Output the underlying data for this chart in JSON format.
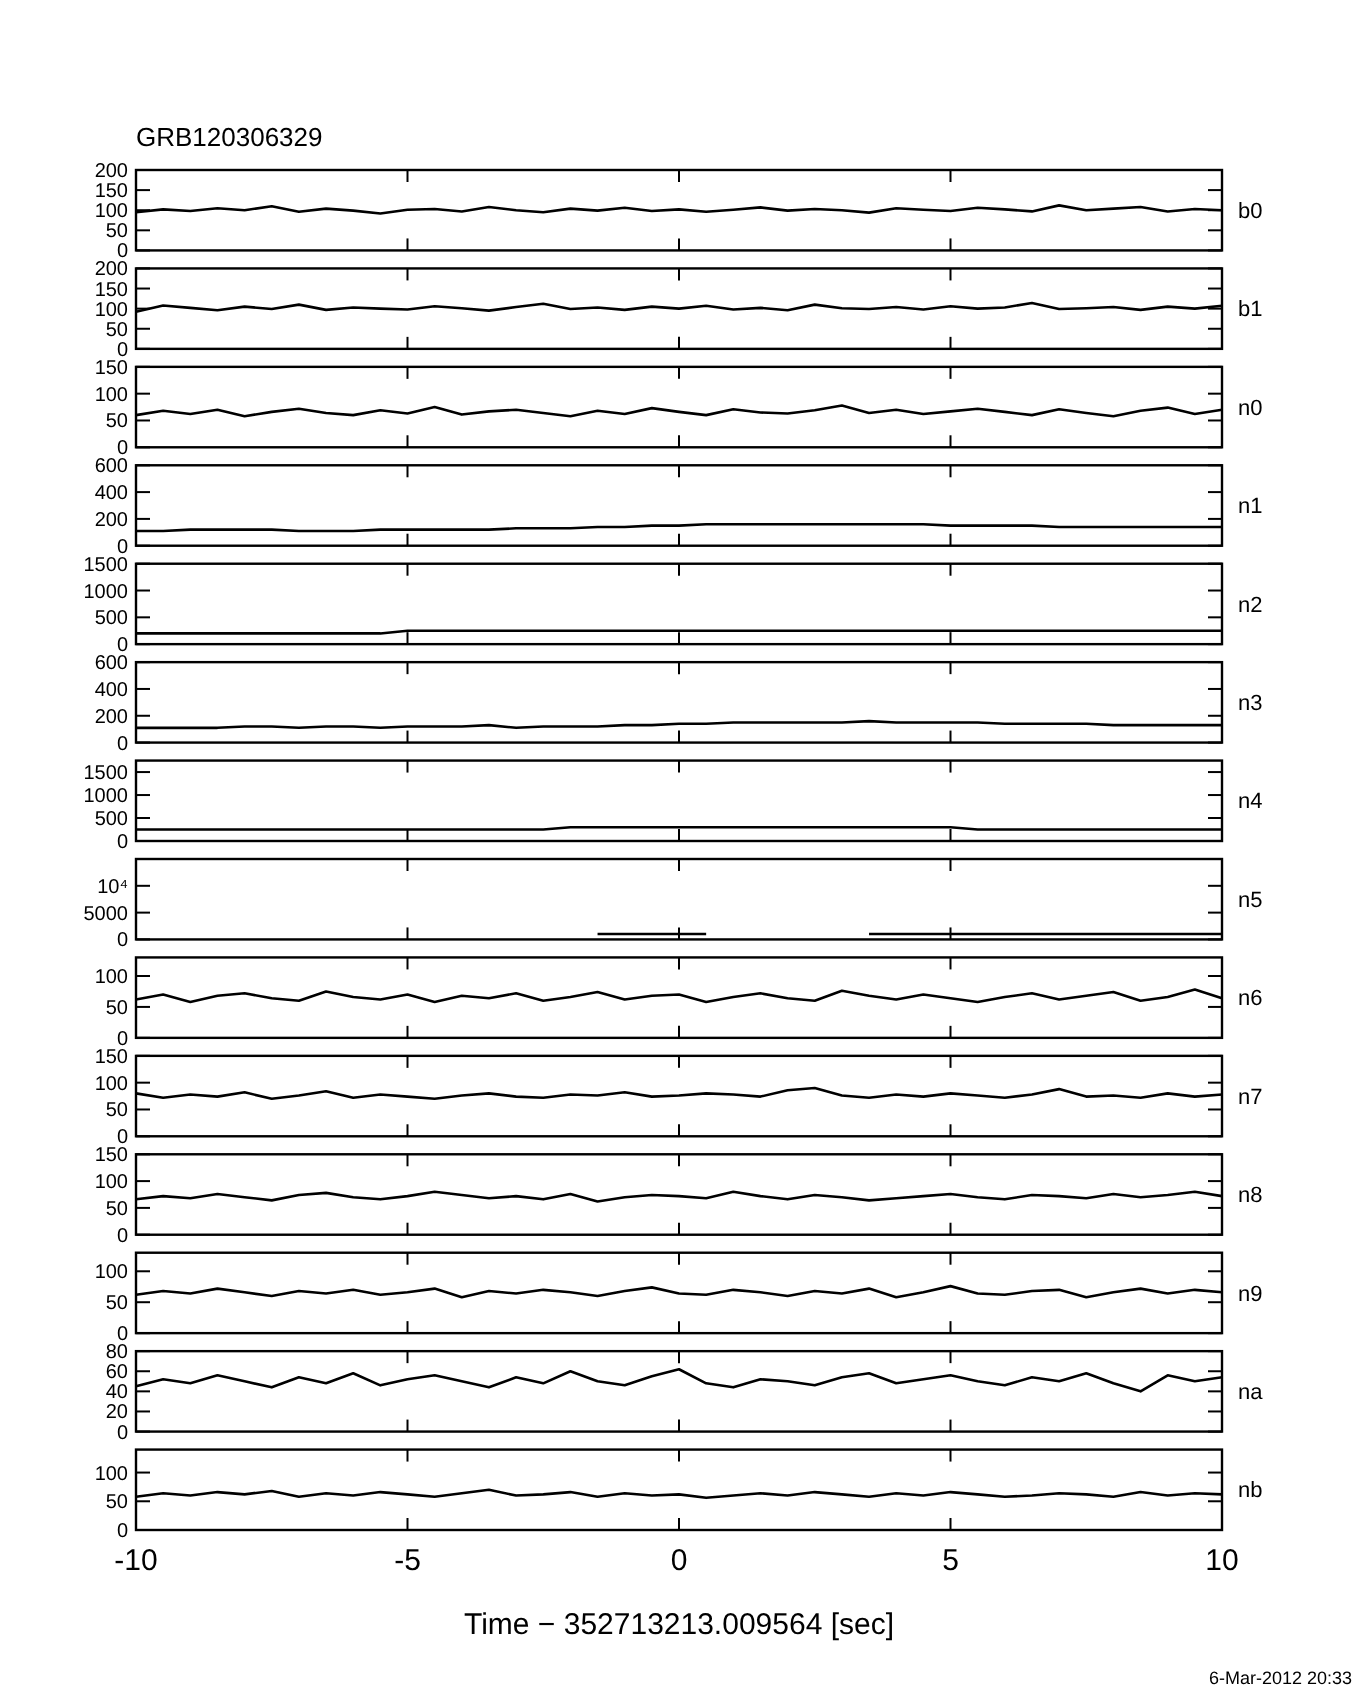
{
  "chart_data": [
    {
      "type": "line",
      "title": "GRB120306329",
      "tick_labels": "y",
      "xlim": [
        -10,
        10
      ],
      "xticks": [
        -10,
        -5,
        0,
        5,
        10
      ],
      "ylim": [
        0,
        200
      ],
      "yticks": [
        0,
        50,
        100,
        150,
        200
      ],
      "x": [
        -10,
        -9.5,
        -9,
        -8.5,
        -8,
        -7.5,
        -7,
        -6.5,
        -6,
        -5.5,
        -5,
        -4.5,
        -4,
        -3.5,
        -3,
        -2.5,
        -2,
        -1.5,
        -1,
        -0.5,
        0,
        0.5,
        1,
        1.5,
        2,
        2.5,
        3,
        3.5,
        4,
        4.5,
        5,
        5.5,
        6,
        6.5,
        7,
        7.5,
        8,
        8.5,
        9,
        9.5,
        10
      ],
      "series": [
        {
          "name": "b0",
          "color": "#000000",
          "values": [
            95,
            102,
            98,
            105,
            100,
            110,
            96,
            104,
            99,
            92,
            101,
            103,
            97,
            108,
            100,
            95,
            104,
            99,
            106,
            98,
            102,
            96,
            101,
            107,
            99,
            103,
            100,
            94,
            105,
            101,
            98,
            106,
            102,
            97,
            112,
            100,
            104,
            108,
            97,
            103,
            100
          ]
        }
      ]
    },
    {
      "type": "line",
      "tick_labels": "y",
      "xlim": [
        -10,
        10
      ],
      "xticks": [
        -10,
        -5,
        0,
        5,
        10
      ],
      "ylim": [
        0,
        200
      ],
      "yticks": [
        0,
        50,
        100,
        150,
        200
      ],
      "x": [
        -10,
        -9.5,
        -9,
        -8.5,
        -8,
        -7.5,
        -7,
        -6.5,
        -6,
        -5.5,
        -5,
        -4.5,
        -4,
        -3.5,
        -3,
        -2.5,
        -2,
        -1.5,
        -1,
        -0.5,
        0,
        0.5,
        1,
        1.5,
        2,
        2.5,
        3,
        3.5,
        4,
        4.5,
        5,
        5.5,
        6,
        6.5,
        7,
        7.5,
        8,
        8.5,
        9,
        9.5,
        10
      ],
      "series": [
        {
          "name": "b1",
          "color": "#000000",
          "values": [
            92,
            108,
            102,
            96,
            105,
            99,
            110,
            97,
            103,
            100,
            98,
            106,
            101,
            95,
            104,
            112,
            99,
            103,
            97,
            105,
            100,
            107,
            98,
            102,
            96,
            110,
            101,
            99,
            104,
            98,
            106,
            100,
            103,
            114,
            99,
            101,
            104,
            97,
            105,
            100,
            107
          ]
        }
      ]
    },
    {
      "type": "line",
      "tick_labels": "y",
      "xlim": [
        -10,
        10
      ],
      "xticks": [
        -10,
        -5,
        0,
        5,
        10
      ],
      "ylim": [
        0,
        150
      ],
      "yticks": [
        0,
        50,
        100,
        150
      ],
      "x": [
        -10,
        -9.5,
        -9,
        -8.5,
        -8,
        -7.5,
        -7,
        -6.5,
        -6,
        -5.5,
        -5,
        -4.5,
        -4,
        -3.5,
        -3,
        -2.5,
        -2,
        -1.5,
        -1,
        -0.5,
        0,
        0.5,
        1,
        1.5,
        2,
        2.5,
        3,
        3.5,
        4,
        4.5,
        5,
        5.5,
        6,
        6.5,
        7,
        7.5,
        8,
        8.5,
        9,
        9.5,
        10
      ],
      "series": [
        {
          "name": "n0",
          "color": "#000000",
          "values": [
            60,
            68,
            62,
            70,
            58,
            66,
            72,
            64,
            60,
            69,
            63,
            75,
            61,
            67,
            70,
            64,
            58,
            68,
            62,
            73,
            66,
            60,
            71,
            65,
            63,
            69,
            78,
            64,
            70,
            62,
            67,
            72,
            66,
            60,
            71,
            64,
            58,
            68,
            74,
            62,
            70
          ]
        }
      ]
    },
    {
      "type": "line",
      "tick_labels": "y",
      "xlim": [
        -10,
        10
      ],
      "xticks": [
        -10,
        -5,
        0,
        5,
        10
      ],
      "ylim": [
        0,
        600
      ],
      "yticks": [
        0,
        200,
        400,
        600
      ],
      "x": [
        -10,
        -9.5,
        -9,
        -8.5,
        -8,
        -7.5,
        -7,
        -6.5,
        -6,
        -5.5,
        -5,
        -4.5,
        -4,
        -3.5,
        -3,
        -2.5,
        -2,
        -1.5,
        -1,
        -0.5,
        0,
        0.5,
        1,
        1.5,
        2,
        2.5,
        3,
        3.5,
        4,
        4.5,
        5,
        5.5,
        6,
        6.5,
        7,
        7.5,
        8,
        8.5,
        9,
        9.5,
        10
      ],
      "series": [
        {
          "name": "n1",
          "color": "#000000",
          "values": [
            110,
            110,
            120,
            120,
            120,
            120,
            110,
            110,
            110,
            120,
            120,
            120,
            120,
            120,
            130,
            130,
            130,
            140,
            140,
            150,
            150,
            160,
            160,
            160,
            160,
            160,
            160,
            160,
            160,
            160,
            150,
            150,
            150,
            150,
            140,
            140,
            140,
            140,
            140,
            140,
            140
          ]
        }
      ]
    },
    {
      "type": "line",
      "tick_labels": "y",
      "xlim": [
        -10,
        10
      ],
      "xticks": [
        -10,
        -5,
        0,
        5,
        10
      ],
      "ylim": [
        0,
        1500
      ],
      "yticks": [
        0,
        500,
        1000,
        1500
      ],
      "x": [
        -10,
        -9.5,
        -9,
        -8.5,
        -8,
        -7.5,
        -7,
        -6.5,
        -6,
        -5.5,
        -5,
        -4.5,
        -4,
        -3.5,
        -3,
        -2.5,
        -2,
        -1.5,
        -1,
        -0.5,
        0,
        0.5,
        1,
        1.5,
        2,
        2.5,
        3,
        3.5,
        4,
        4.5,
        5,
        5.5,
        6,
        6.5,
        7,
        7.5,
        8,
        8.5,
        9,
        9.5,
        10
      ],
      "series": [
        {
          "name": "n2",
          "color": "#000000",
          "values": [
            200,
            200,
            200,
            200,
            200,
            200,
            200,
            200,
            200,
            200,
            250,
            250,
            250,
            250,
            250,
            250,
            250,
            250,
            250,
            250,
            250,
            250,
            250,
            250,
            250,
            250,
            250,
            250,
            250,
            250,
            250,
            250,
            250,
            250,
            250,
            250,
            250,
            250,
            250,
            250,
            250
          ]
        }
      ]
    },
    {
      "type": "line",
      "tick_labels": "y",
      "xlim": [
        -10,
        10
      ],
      "xticks": [
        -10,
        -5,
        0,
        5,
        10
      ],
      "ylim": [
        0,
        600
      ],
      "yticks": [
        0,
        200,
        400,
        600
      ],
      "x": [
        -10,
        -9.5,
        -9,
        -8.5,
        -8,
        -7.5,
        -7,
        -6.5,
        -6,
        -5.5,
        -5,
        -4.5,
        -4,
        -3.5,
        -3,
        -2.5,
        -2,
        -1.5,
        -1,
        -0.5,
        0,
        0.5,
        1,
        1.5,
        2,
        2.5,
        3,
        3.5,
        4,
        4.5,
        5,
        5.5,
        6,
        6.5,
        7,
        7.5,
        8,
        8.5,
        9,
        9.5,
        10
      ],
      "series": [
        {
          "name": "n3",
          "color": "#000000",
          "values": [
            110,
            110,
            110,
            110,
            120,
            120,
            110,
            120,
            120,
            110,
            120,
            120,
            120,
            130,
            110,
            120,
            120,
            120,
            130,
            130,
            140,
            140,
            150,
            150,
            150,
            150,
            150,
            160,
            150,
            150,
            150,
            150,
            140,
            140,
            140,
            140,
            130,
            130,
            130,
            130,
            130
          ]
        }
      ]
    },
    {
      "type": "line",
      "tick_labels": "y",
      "xlim": [
        -10,
        10
      ],
      "xticks": [
        -10,
        -5,
        0,
        5,
        10
      ],
      "ylim": [
        0,
        1750
      ],
      "yticks": [
        0,
        500,
        1000,
        1500
      ],
      "x": [
        -10,
        -9.5,
        -9,
        -8.5,
        -8,
        -7.5,
        -7,
        -6.5,
        -6,
        -5.5,
        -5,
        -4.5,
        -4,
        -3.5,
        -3,
        -2.5,
        -2,
        -1.5,
        -1,
        -0.5,
        0,
        0.5,
        1,
        1.5,
        2,
        2.5,
        3,
        3.5,
        4,
        4.5,
        5,
        5.5,
        6,
        6.5,
        7,
        7.5,
        8,
        8.5,
        9,
        9.5,
        10
      ],
      "series": [
        {
          "name": "n4",
          "color": "#000000",
          "values": [
            250,
            250,
            250,
            250,
            250,
            250,
            250,
            250,
            250,
            250,
            250,
            250,
            250,
            250,
            250,
            250,
            300,
            300,
            300,
            300,
            300,
            300,
            300,
            300,
            300,
            300,
            300,
            300,
            300,
            300,
            300,
            250,
            250,
            250,
            250,
            250,
            250,
            250,
            250,
            250,
            250
          ]
        }
      ]
    },
    {
      "type": "line",
      "tick_labels": "y",
      "xlim": [
        -10,
        10
      ],
      "xticks": [
        -10,
        -5,
        0,
        5,
        10
      ],
      "ylim": [
        0,
        15000
      ],
      "yticks": [
        0,
        5000,
        {
          "value": 10000,
          "label": "10⁴"
        }
      ],
      "series": [
        {
          "name": "n5",
          "color": "#000000",
          "x": [
            -1.5,
            -1,
            -0.5,
            0,
            0.5,
            null,
            3.5,
            4,
            4.5,
            5,
            5.5,
            6,
            6.5,
            7,
            7.5,
            8,
            8.5,
            9,
            9.5,
            10
          ],
          "values": [
            1000,
            1000,
            1000,
            1000,
            1000,
            null,
            1000,
            1000,
            1000,
            1000,
            1000,
            1000,
            1000,
            1000,
            1000,
            1000,
            1000,
            1000,
            1000,
            1000
          ]
        }
      ]
    },
    {
      "type": "line",
      "tick_labels": "y",
      "xlim": [
        -10,
        10
      ],
      "xticks": [
        -10,
        -5,
        0,
        5,
        10
      ],
      "ylim": [
        0,
        130
      ],
      "yticks": [
        0,
        50,
        100
      ],
      "x": [
        -10,
        -9.5,
        -9,
        -8.5,
        -8,
        -7.5,
        -7,
        -6.5,
        -6,
        -5.5,
        -5,
        -4.5,
        -4,
        -3.5,
        -3,
        -2.5,
        -2,
        -1.5,
        -1,
        -0.5,
        0,
        0.5,
        1,
        1.5,
        2,
        2.5,
        3,
        3.5,
        4,
        4.5,
        5,
        5.5,
        6,
        6.5,
        7,
        7.5,
        8,
        8.5,
        9,
        9.5,
        10
      ],
      "series": [
        {
          "name": "n6",
          "color": "#000000",
          "values": [
            62,
            70,
            58,
            68,
            72,
            64,
            60,
            75,
            66,
            62,
            70,
            58,
            68,
            64,
            72,
            60,
            66,
            74,
            62,
            68,
            70,
            58,
            66,
            72,
            64,
            60,
            76,
            68,
            62,
            70,
            64,
            58,
            66,
            72,
            62,
            68,
            74,
            60,
            66,
            78,
            64
          ]
        }
      ]
    },
    {
      "type": "line",
      "tick_labels": "y",
      "xlim": [
        -10,
        10
      ],
      "xticks": [
        -10,
        -5,
        0,
        5,
        10
      ],
      "ylim": [
        0,
        150
      ],
      "yticks": [
        0,
        50,
        100,
        150
      ],
      "x": [
        -10,
        -9.5,
        -9,
        -8.5,
        -8,
        -7.5,
        -7,
        -6.5,
        -6,
        -5.5,
        -5,
        -4.5,
        -4,
        -3.5,
        -3,
        -2.5,
        -2,
        -1.5,
        -1,
        -0.5,
        0,
        0.5,
        1,
        1.5,
        2,
        2.5,
        3,
        3.5,
        4,
        4.5,
        5,
        5.5,
        6,
        6.5,
        7,
        7.5,
        8,
        8.5,
        9,
        9.5,
        10
      ],
      "series": [
        {
          "name": "n7",
          "color": "#000000",
          "values": [
            80,
            72,
            78,
            74,
            82,
            70,
            76,
            84,
            72,
            78,
            74,
            70,
            76,
            80,
            74,
            72,
            78,
            76,
            82,
            74,
            76,
            80,
            78,
            74,
            86,
            90,
            76,
            72,
            78,
            74,
            80,
            76,
            72,
            78,
            88,
            74,
            76,
            72,
            80,
            74,
            78
          ]
        }
      ]
    },
    {
      "type": "line",
      "tick_labels": "y",
      "xlim": [
        -10,
        10
      ],
      "xticks": [
        -10,
        -5,
        0,
        5,
        10
      ],
      "ylim": [
        0,
        150
      ],
      "yticks": [
        0,
        50,
        100,
        150
      ],
      "x": [
        -10,
        -9.5,
        -9,
        -8.5,
        -8,
        -7.5,
        -7,
        -6.5,
        -6,
        -5.5,
        -5,
        -4.5,
        -4,
        -3.5,
        -3,
        -2.5,
        -2,
        -1.5,
        -1,
        -0.5,
        0,
        0.5,
        1,
        1.5,
        2,
        2.5,
        3,
        3.5,
        4,
        4.5,
        5,
        5.5,
        6,
        6.5,
        7,
        7.5,
        8,
        8.5,
        9,
        9.5,
        10
      ],
      "series": [
        {
          "name": "n8",
          "color": "#000000",
          "values": [
            66,
            72,
            68,
            76,
            70,
            64,
            74,
            78,
            70,
            66,
            72,
            80,
            74,
            68,
            72,
            66,
            76,
            62,
            70,
            74,
            72,
            68,
            80,
            72,
            66,
            74,
            70,
            64,
            68,
            72,
            76,
            70,
            66,
            74,
            72,
            68,
            76,
            70,
            74,
            80,
            72
          ]
        }
      ]
    },
    {
      "type": "line",
      "tick_labels": "y",
      "xlim": [
        -10,
        10
      ],
      "xticks": [
        -10,
        -5,
        0,
        5,
        10
      ],
      "ylim": [
        0,
        130
      ],
      "yticks": [
        0,
        50,
        100
      ],
      "x": [
        -10,
        -9.5,
        -9,
        -8.5,
        -8,
        -7.5,
        -7,
        -6.5,
        -6,
        -5.5,
        -5,
        -4.5,
        -4,
        -3.5,
        -3,
        -2.5,
        -2,
        -1.5,
        -1,
        -0.5,
        0,
        0.5,
        1,
        1.5,
        2,
        2.5,
        3,
        3.5,
        4,
        4.5,
        5,
        5.5,
        6,
        6.5,
        7,
        7.5,
        8,
        8.5,
        9,
        9.5,
        10
      ],
      "series": [
        {
          "name": "n9",
          "color": "#000000",
          "values": [
            62,
            68,
            64,
            72,
            66,
            60,
            68,
            64,
            70,
            62,
            66,
            72,
            58,
            68,
            64,
            70,
            66,
            60,
            68,
            74,
            64,
            62,
            70,
            66,
            60,
            68,
            64,
            72,
            58,
            66,
            76,
            64,
            62,
            68,
            70,
            58,
            66,
            72,
            64,
            70,
            66
          ]
        }
      ]
    },
    {
      "type": "line",
      "tick_labels": "y",
      "xlim": [
        -10,
        10
      ],
      "xticks": [
        -10,
        -5,
        0,
        5,
        10
      ],
      "ylim": [
        0,
        80
      ],
      "yticks": [
        0,
        20,
        40,
        60,
        80
      ],
      "x": [
        -10,
        -9.5,
        -9,
        -8.5,
        -8,
        -7.5,
        -7,
        -6.5,
        -6,
        -5.5,
        -5,
        -4.5,
        -4,
        -3.5,
        -3,
        -2.5,
        -2,
        -1.5,
        -1,
        -0.5,
        0,
        0.5,
        1,
        1.5,
        2,
        2.5,
        3,
        3.5,
        4,
        4.5,
        5,
        5.5,
        6,
        6.5,
        7,
        7.5,
        8,
        8.5,
        9,
        9.5,
        10
      ],
      "series": [
        {
          "name": "na",
          "color": "#000000",
          "values": [
            45,
            52,
            48,
            56,
            50,
            44,
            54,
            48,
            58,
            46,
            52,
            56,
            50,
            44,
            54,
            48,
            60,
            50,
            46,
            55,
            62,
            48,
            44,
            52,
            50,
            46,
            54,
            58,
            48,
            52,
            56,
            50,
            46,
            54,
            50,
            58,
            48,
            40,
            56,
            50,
            54
          ]
        }
      ]
    },
    {
      "type": "line",
      "xlabel": "Time − 352713213.009564 [sec]",
      "annotations": [
        "6-Mar-2012 20:33"
      ],
      "xlim": [
        -10,
        10
      ],
      "xticks": [
        -10,
        -5,
        0,
        5,
        10
      ],
      "ylim": [
        0,
        140
      ],
      "yticks": [
        0,
        50,
        100
      ],
      "x": [
        -10,
        -9.5,
        -9,
        -8.5,
        -8,
        -7.5,
        -7,
        -6.5,
        -6,
        -5.5,
        -5,
        -4.5,
        -4,
        -3.5,
        -3,
        -2.5,
        -2,
        -1.5,
        -1,
        -0.5,
        0,
        0.5,
        1,
        1.5,
        2,
        2.5,
        3,
        3.5,
        4,
        4.5,
        5,
        5.5,
        6,
        6.5,
        7,
        7.5,
        8,
        8.5,
        9,
        9.5,
        10
      ],
      "series": [
        {
          "name": "nb",
          "color": "#000000",
          "values": [
            58,
            64,
            60,
            66,
            62,
            68,
            58,
            64,
            60,
            66,
            62,
            58,
            64,
            70,
            60,
            62,
            66,
            58,
            64,
            60,
            62,
            56,
            60,
            64,
            60,
            66,
            62,
            58,
            64,
            60,
            66,
            62,
            58,
            60,
            64,
            62,
            58,
            66,
            60,
            64,
            62
          ]
        }
      ]
    }
  ]
}
